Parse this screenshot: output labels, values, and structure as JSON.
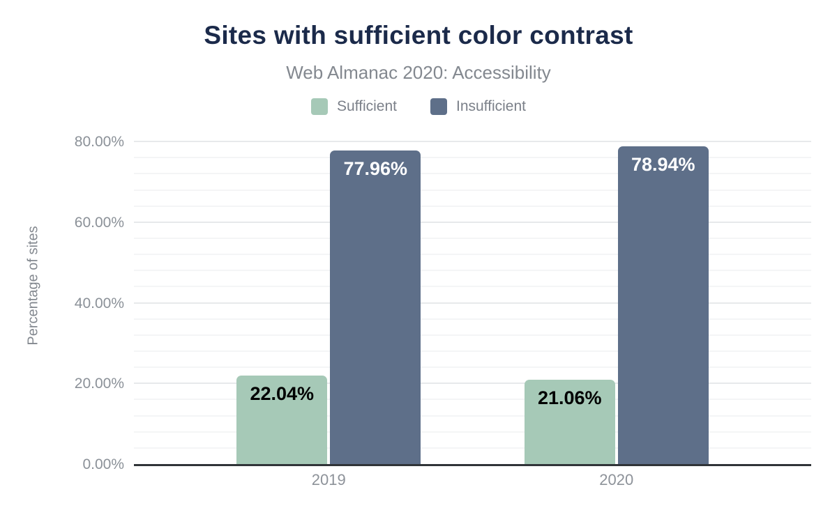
{
  "chart_data": {
    "type": "bar",
    "title": "Sites with sufficient color contrast",
    "subtitle": "Web Almanac 2020: Accessibility",
    "xlabel": "",
    "ylabel": "Percentage of sites",
    "categories": [
      "2019",
      "2020"
    ],
    "series": [
      {
        "name": "Sufficient",
        "color": "#a6c9b7",
        "label_color": "#000000",
        "values": [
          22.04,
          21.06
        ],
        "data_labels": [
          "22.04%",
          "21.06%"
        ]
      },
      {
        "name": "Insufficient",
        "color": "#5e6f89",
        "label_color": "#ffffff",
        "values": [
          77.96,
          78.94
        ],
        "data_labels": [
          "77.96%",
          "78.94%"
        ]
      }
    ],
    "ylim": [
      0,
      84
    ],
    "yticks": [
      0,
      20,
      40,
      60,
      80
    ],
    "ytick_labels": [
      "0.00%",
      "20.00%",
      "40.00%",
      "60.00%",
      "80.00%"
    ],
    "minor_gridline_step": 4,
    "grid": true,
    "legend_position": "top",
    "colors": {
      "title": "#1b2a4a",
      "subtitle": "#83888f",
      "axis_text": "#8b9198",
      "axis_line": "#303438",
      "major_gridline": "#e7e9eb",
      "minor_gridline": "#f4f5f6",
      "background": "#ffffff"
    }
  }
}
